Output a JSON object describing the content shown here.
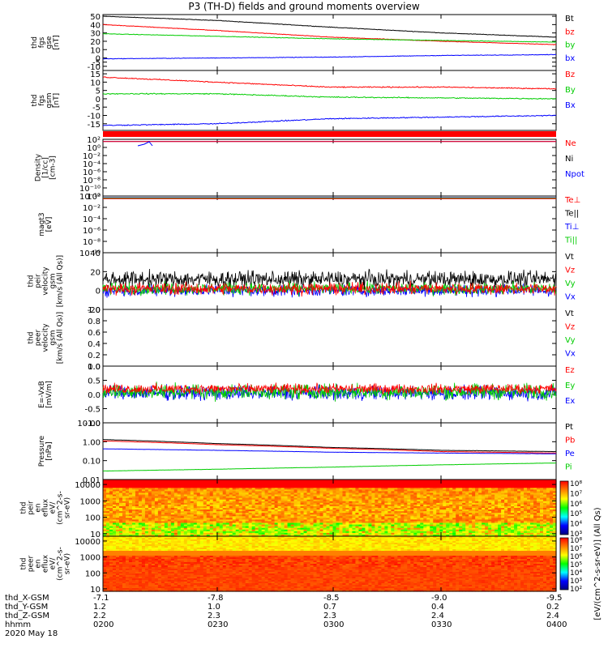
{
  "title": "P3 (TH-D) fields and ground moments overview",
  "colors": {
    "black": "#000000",
    "red": "#ff0000",
    "green": "#00cc00",
    "blue": "#0000ff"
  },
  "panels": [
    {
      "id": "fgs_gse",
      "ylabel": [
        "thd",
        "fgs",
        "gse",
        "[nT]"
      ],
      "log": false,
      "ylim": [
        -15,
        52
      ],
      "ticks": [
        -10,
        -5,
        0,
        10,
        20,
        30,
        40,
        50
      ],
      "tick_labels": [
        "-10",
        "-5",
        "0",
        "10",
        "20",
        "30",
        "40",
        "50"
      ],
      "legend": [
        {
          "label": "Bt",
          "color": "#000000"
        },
        {
          "label": "bz",
          "color": "#ff0000"
        },
        {
          "label": "by",
          "color": "#00cc00"
        },
        {
          "label": "bx",
          "color": "#0000ff"
        }
      ]
    },
    {
      "id": "fgs_gsm",
      "ylabel": [
        "thd",
        "fgs",
        "gsm",
        "[nT]"
      ],
      "log": false,
      "ylim": [
        -19,
        17
      ],
      "ticks": [
        -15,
        -10,
        -5,
        0,
        5,
        10,
        15
      ],
      "tick_labels": [
        "-15",
        "-10",
        "-5",
        "0",
        "5",
        "10",
        "15"
      ],
      "legend": [
        {
          "label": "Bz",
          "color": "#ff0000"
        },
        {
          "label": "By",
          "color": "#00cc00"
        },
        {
          "label": "Bx",
          "color": "#0000ff"
        }
      ]
    },
    {
      "id": "density",
      "ylabel": [
        "Density",
        "[1/cc]",
        "[cm-3]"
      ],
      "log": true,
      "ylim": [
        1e-12,
        100
      ],
      "ticks": [
        100,
        1,
        0.01,
        0.0001,
        1e-06,
        1e-08,
        1e-10,
        1e-12
      ],
      "tick_labels": [
        "10²",
        "10⁰",
        "10⁻²",
        "10⁻⁴",
        "10⁻⁶",
        "10⁻⁸",
        "10⁻¹⁰",
        "10⁻¹²"
      ],
      "legend": [
        {
          "label": "Ne",
          "color": "#ff0000"
        },
        {
          "label": "Ni",
          "color": "#000000"
        },
        {
          "label": "Npot",
          "color": "#0000ff"
        }
      ]
    },
    {
      "id": "temperature",
      "ylabel": [
        "magt3",
        "[eV]"
      ],
      "log": true,
      "ylim": [
        1e-10,
        1
      ],
      "ticks": [
        1,
        0.01,
        0.0001,
        1e-06,
        1e-08,
        1e-10
      ],
      "tick_labels": [
        "10⁰",
        "10⁻²",
        "10⁻⁴",
        "10⁻⁶",
        "10⁻⁸",
        "10⁻¹⁰"
      ],
      "legend": [
        {
          "label": "Te⊥",
          "color": "#ff0000"
        },
        {
          "label": "Te||",
          "color": "#000000"
        },
        {
          "label": "Ti⊥",
          "color": "#0000ff"
        },
        {
          "label": "Ti||",
          "color": "#00cc00"
        }
      ]
    },
    {
      "id": "peir_velocity",
      "ylabel": [
        "thd",
        "peir",
        "velocity",
        "gsm",
        "[km/s (All Qs)]"
      ],
      "log": false,
      "ylim": [
        -20,
        40
      ],
      "ticks": [
        -20,
        0,
        20,
        40
      ],
      "tick_labels": [
        "-20",
        "0",
        "20",
        "40"
      ],
      "legend": [
        {
          "label": "Vt",
          "color": "#000000"
        },
        {
          "label": "Vz",
          "color": "#ff0000"
        },
        {
          "label": "Vy",
          "color": "#00cc00"
        },
        {
          "label": "Vx",
          "color": "#0000ff"
        }
      ]
    },
    {
      "id": "peer_velocity",
      "ylabel": [
        "thd",
        "peer",
        "velocity",
        "gsm",
        "[km/s (All Qs)]"
      ],
      "log": false,
      "ylim": [
        0,
        1
      ],
      "ticks": [
        0,
        0.2,
        0.4,
        0.6,
        0.8,
        1.0
      ],
      "tick_labels": [
        "0.0",
        "0.2",
        "0.4",
        "0.6",
        "0.8",
        "1.0"
      ],
      "legend": [
        {
          "label": "Vt",
          "color": "#000000"
        },
        {
          "label": "Vz",
          "color": "#ff0000"
        },
        {
          "label": "Vy",
          "color": "#00cc00"
        },
        {
          "label": "Vx",
          "color": "#0000ff"
        }
      ]
    },
    {
      "id": "efield",
      "ylabel": [
        "E=-VxB",
        "[mV/m]"
      ],
      "log": false,
      "ylim": [
        -1.0,
        1.0
      ],
      "ticks": [
        -1.0,
        -0.5,
        0.0,
        0.5,
        1.0
      ],
      "tick_labels": [
        "-1.0",
        "-0.5",
        "0.0",
        "0.5",
        "1.0"
      ],
      "legend": [
        {
          "label": "Ez",
          "color": "#ff0000"
        },
        {
          "label": "Ey",
          "color": "#00cc00"
        },
        {
          "label": "Ex",
          "color": "#0000ff"
        }
      ]
    },
    {
      "id": "pressure",
      "ylabel": [
        "Pressure",
        "[nPa]"
      ],
      "log": true,
      "ylim": [
        0.01,
        10
      ],
      "ticks": [
        0.01,
        0.1,
        1,
        10
      ],
      "tick_labels": [
        "0.01",
        "0.10",
        "1.00",
        "10.00"
      ],
      "legend": [
        {
          "label": "Pt",
          "color": "#000000"
        },
        {
          "label": "Pb",
          "color": "#ff0000"
        },
        {
          "label": "Pe",
          "color": "#0000ff"
        },
        {
          "label": "Pi",
          "color": "#00cc00"
        }
      ]
    },
    {
      "id": "peir_eflux",
      "ylabel": [
        "thd",
        "peir",
        "en",
        "eflux",
        "eV/",
        "(cm^2-s-",
        "sr-eV)"
      ],
      "log": true,
      "ylim": [
        7,
        20000
      ],
      "ticks": [
        10,
        100,
        1000,
        10000
      ],
      "tick_labels": [
        "10",
        "100",
        "1000",
        "10000"
      ],
      "colorbar": {
        "min_exp": 3,
        "max_exp": 8,
        "tick_labels": [
          "10³",
          "10⁴",
          "10⁵",
          "10⁶",
          "10⁷",
          "10⁸"
        ]
      }
    },
    {
      "id": "peer_eflux",
      "ylabel": [
        "thd",
        "peer",
        "en",
        "eflux",
        "eV/",
        "(cm^2-s-",
        "sr-eV)"
      ],
      "log": true,
      "ylim": [
        7,
        20000
      ],
      "ticks": [
        10,
        100,
        1000,
        10000
      ],
      "tick_labels": [
        "10",
        "100",
        "1000",
        "10000"
      ],
      "colorbar": {
        "min_exp": 2,
        "max_exp": 8,
        "tick_labels": [
          "10²",
          "10³",
          "10⁴",
          "10⁵",
          "10⁶",
          "10⁷",
          "10⁸"
        ]
      }
    }
  ],
  "colorbar_label": "[eV/(cm^2-s-sr-eV)] (All Qs)",
  "footer": {
    "rows": [
      "thd_X-GSM",
      "thd_Y-GSM",
      "thd_Z-GSM",
      "hhmm",
      "2020 May 18"
    ],
    "columns": [
      {
        "x": "-7.1",
        "y": "1.2",
        "z": "2.2",
        "t": "0200"
      },
      {
        "x": "-7.8",
        "y": "1.0",
        "z": "2.3",
        "t": "0230"
      },
      {
        "x": "-8.5",
        "y": "0.7",
        "z": "2.3",
        "t": "0300"
      },
      {
        "x": "-9.0",
        "y": "0.4",
        "z": "2.4",
        "t": "0330"
      },
      {
        "x": "-9.5",
        "y": "0.2",
        "z": "2.4",
        "t": "0400"
      }
    ]
  },
  "chart_data": {
    "type": "line",
    "title": "P3 (TH-D) fields and ground moments overview",
    "x": [
      "0200",
      "0230",
      "0300",
      "0330",
      "0400"
    ],
    "xlabel": "hhmm",
    "series": [
      {
        "panel": "fgs_gse",
        "name": "Bt",
        "values": [
          50,
          45,
          37,
          30,
          25
        ]
      },
      {
        "panel": "fgs_gse",
        "name": "bz",
        "values": [
          40,
          33,
          25,
          20,
          16
        ]
      },
      {
        "panel": "fgs_gse",
        "name": "by",
        "values": [
          29,
          26,
          23,
          21,
          19
        ]
      },
      {
        "panel": "fgs_gse",
        "name": "bx",
        "values": [
          -1,
          0,
          1,
          3,
          4
        ]
      },
      {
        "panel": "fgs_gsm",
        "name": "Bz",
        "values": [
          13,
          10,
          7,
          7,
          6
        ]
      },
      {
        "panel": "fgs_gsm",
        "name": "By",
        "values": [
          3,
          3,
          1,
          0.5,
          0
        ]
      },
      {
        "panel": "fgs_gsm",
        "name": "Bx",
        "values": [
          -16,
          -15,
          -12,
          -11,
          -10
        ]
      },
      {
        "panel": "pressure",
        "name": "Pt",
        "values": [
          1.3,
          0.8,
          0.5,
          0.35,
          0.3
        ]
      },
      {
        "panel": "pressure",
        "name": "Pb",
        "values": [
          1.1,
          0.7,
          0.45,
          0.3,
          0.25
        ]
      },
      {
        "panel": "pressure",
        "name": "Pe",
        "values": [
          0.42,
          0.35,
          0.28,
          0.25,
          0.23
        ]
      },
      {
        "panel": "pressure",
        "name": "Pi",
        "values": [
          0.028,
          0.035,
          0.045,
          0.06,
          0.075
        ]
      }
    ]
  }
}
